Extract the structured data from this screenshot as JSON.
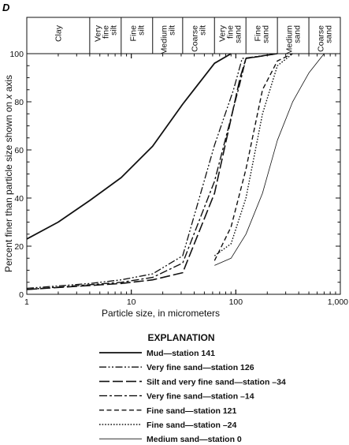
{
  "panel_label": "D",
  "chart_data": {
    "type": "line",
    "xscale": "log",
    "xlim": [
      1,
      1000
    ],
    "ylim": [
      0,
      100
    ],
    "xlabel": "Particle size, in micrometers",
    "ylabel": "Percent finer than particle size shown on x axis",
    "ylabel_parts": [
      "Percent finer than particle size shown on ",
      "x",
      " axis"
    ],
    "xticks": [
      {
        "value": 1,
        "label": "1"
      },
      {
        "value": 10,
        "label": "10"
      },
      {
        "value": 100,
        "label": "100"
      },
      {
        "value": 1000,
        "label": "1,000"
      }
    ],
    "yticks": [
      {
        "value": 0,
        "label": "0"
      },
      {
        "value": 20,
        "label": "20"
      },
      {
        "value": 40,
        "label": "40"
      },
      {
        "value": 60,
        "label": "60"
      },
      {
        "value": 80,
        "label": "80"
      },
      {
        "value": 100,
        "label": "100"
      }
    ],
    "size_classes": [
      {
        "lines": [
          "Clay"
        ],
        "from": 1,
        "to": 4
      },
      {
        "lines": [
          "Very",
          "fine",
          "silt"
        ],
        "from": 4,
        "to": 8
      },
      {
        "lines": [
          "Fine",
          "silt"
        ],
        "from": 8,
        "to": 16
      },
      {
        "lines": [
          "Medium",
          "silt"
        ],
        "from": 16,
        "to": 31
      },
      {
        "lines": [
          "Coarse",
          "silt"
        ],
        "from": 31,
        "to": 62.5
      },
      {
        "lines": [
          "Very",
          "fine",
          "sand"
        ],
        "from": 62.5,
        "to": 125
      },
      {
        "lines": [
          "Fine",
          "sand"
        ],
        "from": 125,
        "to": 250
      },
      {
        "lines": [
          "Medium",
          "sand"
        ],
        "from": 250,
        "to": 500
      },
      {
        "lines": [
          "Coarse",
          "sand"
        ],
        "from": 500,
        "to": 1000
      }
    ],
    "legend_title": "EXPLANATION",
    "series": [
      {
        "name": "Mud—station 141",
        "style": "solid-heavy",
        "x": [
          1,
          2,
          4,
          8,
          16,
          31,
          62.5,
          90
        ],
        "y": [
          23,
          30,
          39,
          48.5,
          61.5,
          79,
          96,
          100
        ]
      },
      {
        "name": "Very fine sand—station 126",
        "style": "dash-dot-dot",
        "x": [
          1,
          4,
          8,
          16,
          31,
          62.5,
          95,
          115,
          250
        ],
        "y": [
          2.5,
          4.5,
          6,
          8.5,
          16,
          62,
          85,
          98,
          100
        ]
      },
      {
        "name": "Silt and very fine sand—station –34",
        "style": "long-dash",
        "x": [
          1,
          8,
          16,
          31,
          62.5,
          110,
          125,
          250
        ],
        "y": [
          2,
          4.5,
          6,
          9,
          42,
          90,
          98,
          100
        ]
      },
      {
        "name": "Very fine sand—station –14",
        "style": "dash-dot",
        "x": [
          1,
          8,
          16,
          31,
          62.5,
          110,
          125,
          250
        ],
        "y": [
          2,
          5,
          7,
          13,
          47,
          88,
          98,
          100
        ]
      },
      {
        "name": "Fine sand—station 121",
        "style": "short-dash",
        "x": [
          62.5,
          90,
          125,
          180,
          250,
          350
        ],
        "y": [
          14,
          28,
          52,
          85,
          97,
          100
        ]
      },
      {
        "name": "Fine sand—station –24",
        "style": "dotted",
        "x": [
          62.5,
          90,
          125,
          180,
          250,
          350
        ],
        "y": [
          16,
          21,
          40,
          75,
          95,
          100
        ]
      },
      {
        "name": "Medium sand—station 0",
        "style": "solid-thin",
        "x": [
          62.5,
          90,
          125,
          180,
          250,
          350,
          500,
          700
        ],
        "y": [
          12,
          15,
          25,
          42,
          64,
          80,
          92,
          100
        ]
      }
    ]
  }
}
